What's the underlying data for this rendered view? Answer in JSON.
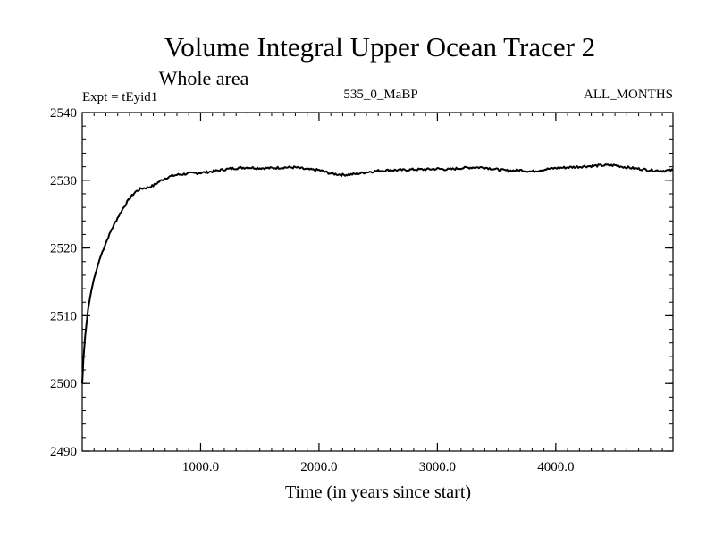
{
  "chart_data": {
    "type": "line",
    "title": "Volume Integral Upper Ocean Tracer 2",
    "subtitle": "Whole area",
    "annotations": {
      "experiment": "Expt = tEyid1",
      "case": "535_0_MaBP",
      "months": "ALL_MONTHS"
    },
    "xlabel": "Time (in years since start)",
    "ylabel": "",
    "xlim": [
      0,
      4990
    ],
    "ylim": [
      2490,
      2540
    ],
    "x_ticks": [
      {
        "value": 1000,
        "label": "1000.0"
      },
      {
        "value": 2000,
        "label": "2000.0"
      },
      {
        "value": 3000,
        "label": "3000.0"
      },
      {
        "value": 4000,
        "label": "4000.0"
      }
    ],
    "x_minor_step": 100,
    "y_ticks": [
      {
        "value": 2490,
        "label": "2490"
      },
      {
        "value": 2500,
        "label": "2500"
      },
      {
        "value": 2510,
        "label": "2510"
      },
      {
        "value": 2520,
        "label": "2520"
      },
      {
        "value": 2530,
        "label": "2530"
      },
      {
        "value": 2540,
        "label": "2540"
      }
    ],
    "y_minor_step": 2,
    "grid": false,
    "line_color": "#000000",
    "series": [
      {
        "x": [
          0,
          10,
          25,
          50,
          75,
          100,
          150,
          200,
          250,
          300,
          350,
          400,
          450,
          500,
          550,
          600,
          650,
          700,
          750,
          800,
          850,
          900,
          1000,
          1100,
          1200,
          1300,
          1400,
          1500,
          1600,
          1700,
          1800,
          1900,
          2000,
          2100,
          2200,
          2300,
          2400,
          2500,
          2600,
          2700,
          2800,
          2900,
          3000,
          3100,
          3200,
          3300,
          3400,
          3500,
          3600,
          3700,
          3800,
          3900,
          4000,
          4100,
          4200,
          4300,
          4400,
          4500,
          4600,
          4700,
          4800,
          4900,
          4990
        ],
        "y": [
          2500.0,
          2503.5,
          2507.0,
          2511.0,
          2513.5,
          2515.5,
          2518.5,
          2520.8,
          2522.8,
          2524.5,
          2526.0,
          2527.3,
          2528.3,
          2528.8,
          2528.9,
          2529.2,
          2529.8,
          2530.3,
          2530.6,
          2530.8,
          2530.9,
          2531.0,
          2531.1,
          2531.3,
          2531.6,
          2531.8,
          2531.9,
          2531.8,
          2531.8,
          2531.9,
          2531.9,
          2531.6,
          2531.5,
          2531.0,
          2530.8,
          2530.9,
          2531.2,
          2531.4,
          2531.5,
          2531.5,
          2531.6,
          2531.6,
          2531.7,
          2531.6,
          2531.8,
          2531.9,
          2531.9,
          2531.6,
          2531.4,
          2531.5,
          2531.3,
          2531.6,
          2531.8,
          2531.9,
          2532.0,
          2532.1,
          2532.2,
          2532.2,
          2531.9,
          2531.7,
          2531.5,
          2531.4,
          2531.5
        ]
      }
    ]
  }
}
